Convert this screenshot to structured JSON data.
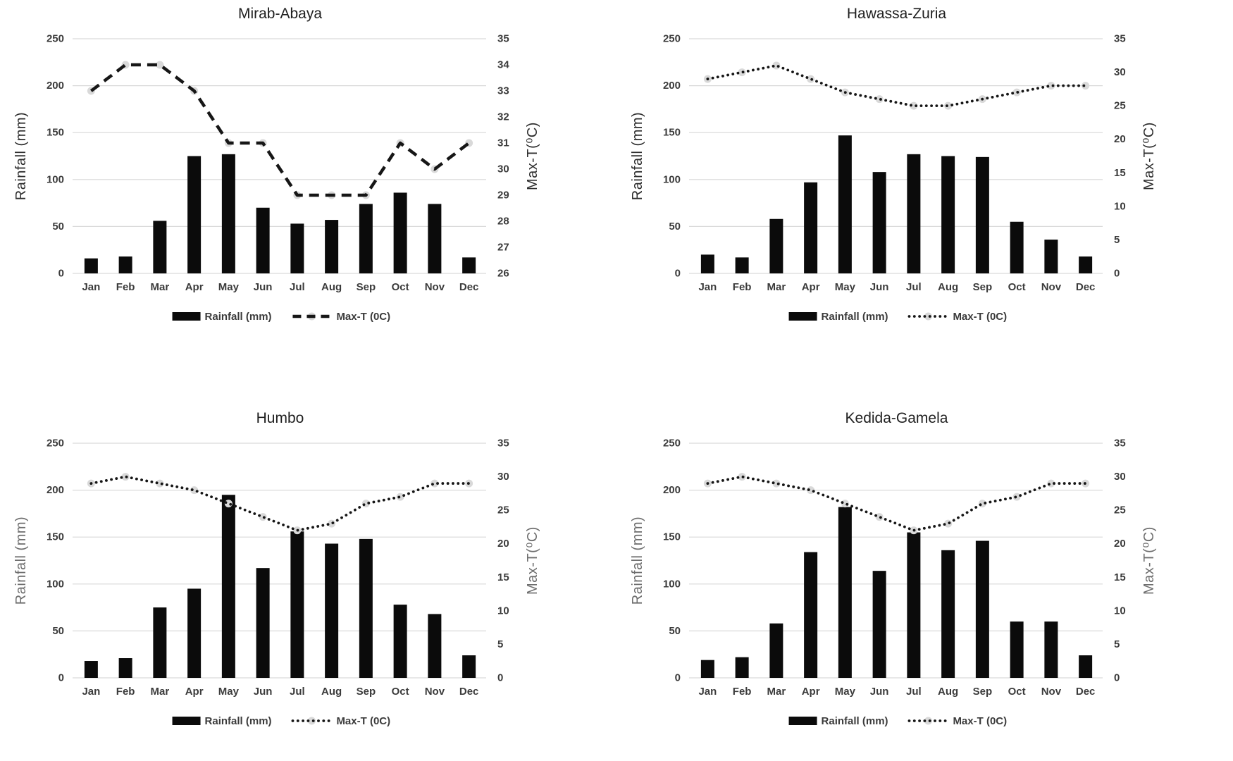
{
  "page": {
    "background": "#ffffff"
  },
  "style": {
    "bar_color": "#0b0b0b",
    "line_color": "#161616",
    "marker_color": "#d9d9d9",
    "grid_color": "#d9d9d9",
    "tick_color": "#3b3b3b",
    "title_color": "#1f1f1f"
  },
  "chart_data": [
    {
      "id": "mirab-abaya",
      "type": "bar+line",
      "title": "Mirab-Abaya",
      "categories": [
        "Jan",
        "Feb",
        "Mar",
        "Apr",
        "May",
        "Jun",
        "Jul",
        "Aug",
        "Sep",
        "Oct",
        "Nov",
        "Dec"
      ],
      "series": [
        {
          "name": "Rainfall (mm)",
          "type": "bar",
          "axis": "left",
          "values": [
            16,
            18,
            56,
            125,
            127,
            70,
            53,
            57,
            74,
            86,
            74,
            17
          ]
        },
        {
          "name": "Max-T (0C)",
          "type": "line",
          "axis": "right",
          "style": "dashed",
          "values": [
            33,
            34,
            34,
            33,
            31,
            31,
            29,
            29,
            29,
            31,
            30,
            31
          ]
        }
      ],
      "left_axis": {
        "label": "Rainfall (mm)",
        "min": 0,
        "max": 250,
        "step": 50
      },
      "right_axis": {
        "label": "Max-T(⁰C)",
        "min": 26,
        "max": 35,
        "step": 1
      },
      "axis_title_color": "#2e2e2e",
      "grid": true,
      "legend_position": "bottom"
    },
    {
      "id": "hawassa-zuria",
      "type": "bar+line",
      "title": "Hawassa-Zuria",
      "categories": [
        "Jan",
        "Feb",
        "Mar",
        "Apr",
        "May",
        "Jun",
        "Jul",
        "Aug",
        "Sep",
        "Oct",
        "Nov",
        "Dec"
      ],
      "series": [
        {
          "name": "Rainfall (mm)",
          "type": "bar",
          "axis": "left",
          "values": [
            20,
            17,
            58,
            97,
            147,
            108,
            127,
            125,
            124,
            55,
            36,
            18
          ]
        },
        {
          "name": "Max-T (0C)",
          "type": "line",
          "axis": "right",
          "style": "dotted",
          "values": [
            29,
            30,
            31,
            29,
            27,
            26,
            25,
            25,
            26,
            27,
            28,
            28
          ]
        }
      ],
      "left_axis": {
        "label": "Rainfall (mm)",
        "min": 0,
        "max": 250,
        "step": 50
      },
      "right_axis": {
        "label": "Max-T(⁰C)",
        "min": 0,
        "max": 35,
        "step": 5
      },
      "axis_title_color": "#2e2e2e",
      "grid": true,
      "legend_position": "bottom"
    },
    {
      "id": "humbo",
      "type": "bar+line",
      "title": "Humbo",
      "categories": [
        "Jan",
        "Feb",
        "Mar",
        "Apr",
        "May",
        "Jun",
        "Jul",
        "Aug",
        "Sep",
        "Oct",
        "Nov",
        "Dec"
      ],
      "series": [
        {
          "name": "Rainfall (mm)",
          "type": "bar",
          "axis": "left",
          "values": [
            18,
            21,
            75,
            95,
            195,
            117,
            156,
            143,
            148,
            78,
            68,
            24
          ]
        },
        {
          "name": "Max-T (0C)",
          "type": "line",
          "axis": "right",
          "style": "dotted",
          "values": [
            29,
            30,
            29,
            28,
            26,
            24,
            22,
            23,
            26,
            27,
            29,
            29
          ]
        }
      ],
      "left_axis": {
        "label": "Rainfall (mm)",
        "min": 0,
        "max": 250,
        "step": 50
      },
      "right_axis": {
        "label": "Max-T(⁰C)",
        "min": 0,
        "max": 35,
        "step": 5
      },
      "axis_title_color": "#6e6e6e",
      "grid": true,
      "legend_position": "bottom"
    },
    {
      "id": "kedida-gamela",
      "type": "bar+line",
      "title": "Kedida-Gamela",
      "categories": [
        "Jan",
        "Feb",
        "Mar",
        "Apr",
        "May",
        "Jun",
        "Jul",
        "Aug",
        "Sep",
        "Oct",
        "Nov",
        "Dec"
      ],
      "series": [
        {
          "name": "Rainfall (mm)",
          "type": "bar",
          "axis": "left",
          "values": [
            19,
            22,
            58,
            134,
            182,
            114,
            155,
            136,
            146,
            60,
            60,
            24
          ]
        },
        {
          "name": "Max-T (0C)",
          "type": "line",
          "axis": "right",
          "style": "dotted",
          "values": [
            29,
            30,
            29,
            28,
            26,
            24,
            22,
            23,
            26,
            27,
            29,
            29
          ]
        }
      ],
      "left_axis": {
        "label": "Rainfall (mm)",
        "min": 0,
        "max": 250,
        "step": 50
      },
      "right_axis": {
        "label": "Max-T(⁰C)",
        "min": 0,
        "max": 35,
        "step": 5
      },
      "axis_title_color": "#6e6e6e",
      "grid": true,
      "legend_position": "bottom"
    }
  ]
}
